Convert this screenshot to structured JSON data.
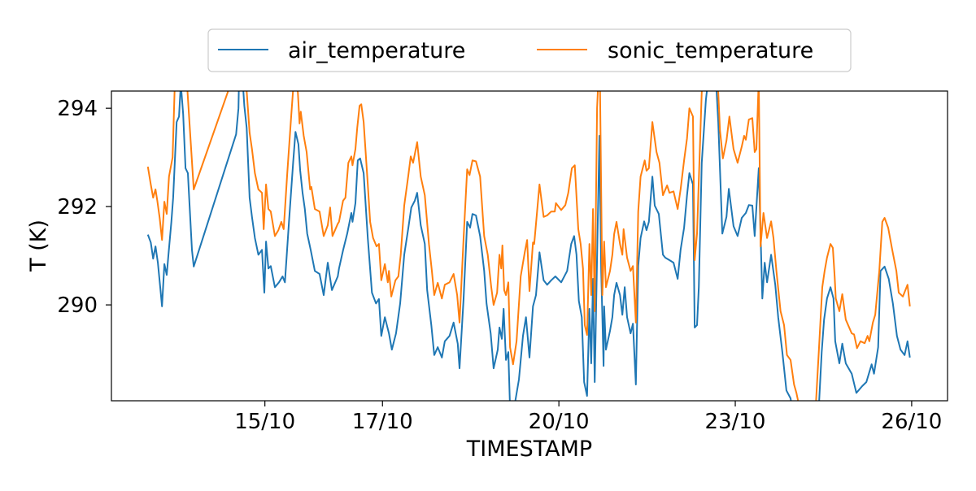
{
  "chart_data": {
    "type": "line",
    "xlabel": "TIMESTAMP",
    "ylabel": "T (K)",
    "xlim": [
      12.39,
      26.61
    ],
    "ylim": [
      288.05,
      294.35
    ],
    "x_ticks": [
      {
        "value": 15,
        "label": "15/10"
      },
      {
        "value": 17,
        "label": "17/10"
      },
      {
        "value": 20,
        "label": "20/10"
      },
      {
        "value": 23,
        "label": "23/10"
      },
      {
        "value": 26,
        "label": "26/10"
      }
    ],
    "y_ticks": [
      {
        "value": 290,
        "label": "290"
      },
      {
        "value": 292,
        "label": "292"
      },
      {
        "value": 294,
        "label": "294"
      }
    ],
    "grid": false,
    "legend_position": "top-center-outside",
    "series": [
      {
        "name": "air_temperature",
        "color": "#1f77b4",
        "x": [
          13.01,
          13.06,
          13.1,
          13.14,
          13.18,
          13.22,
          13.25,
          13.29,
          13.33,
          13.36,
          13.41,
          13.44,
          13.5,
          13.54,
          13.57,
          13.61,
          13.65,
          13.69,
          13.72,
          13.76,
          13.79,
          14.51,
          14.55,
          14.56,
          14.62,
          14.65,
          14.69,
          14.74,
          14.78,
          14.83,
          14.89,
          14.95,
          14.99,
          15.02,
          15.06,
          15.1,
          15.17,
          15.24,
          15.3,
          15.34,
          15.41,
          15.48,
          15.52,
          15.57,
          15.6,
          15.64,
          15.68,
          15.72,
          15.78,
          15.85,
          15.93,
          16.0,
          16.07,
          16.14,
          16.24,
          16.26,
          16.33,
          16.4,
          16.47,
          16.49,
          16.54,
          16.58,
          16.62,
          16.68,
          16.75,
          16.82,
          16.89,
          16.94,
          16.98,
          17.04,
          17.11,
          17.16,
          17.23,
          17.3,
          17.37,
          17.44,
          17.49,
          17.55,
          17.59,
          17.65,
          17.72,
          17.76,
          17.83,
          17.88,
          17.94,
          18.01,
          18.06,
          18.14,
          18.21,
          18.28,
          18.31,
          18.38,
          18.44,
          18.49,
          18.53,
          18.59,
          18.66,
          18.73,
          18.77,
          18.84,
          18.89,
          18.96,
          18.99,
          19.03,
          19.06,
          19.1,
          19.14,
          19.17,
          19.25,
          19.32,
          19.39,
          19.44,
          19.5,
          19.56,
          19.61,
          19.67,
          19.74,
          19.8,
          19.87,
          19.94,
          20.04,
          20.14,
          20.21,
          20.26,
          20.3,
          20.34,
          20.39,
          20.43,
          20.48,
          20.52,
          20.55,
          20.58,
          20.61,
          20.65,
          20.69,
          20.72,
          20.76,
          20.77,
          20.8,
          20.87,
          20.91,
          20.94,
          20.98,
          21.04,
          21.08,
          21.12,
          21.16,
          21.22,
          21.26,
          21.31,
          21.35,
          21.39,
          21.45,
          21.49,
          21.53,
          21.59,
          21.63,
          21.7,
          21.77,
          21.81,
          21.88,
          21.95,
          22.02,
          22.07,
          22.13,
          22.18,
          22.22,
          22.28,
          22.31,
          22.35,
          22.38,
          22.43,
          22.5,
          22.54,
          22.67,
          22.71,
          22.78,
          22.85,
          22.89,
          22.97,
          23.04,
          23.11,
          23.18,
          23.23,
          23.29,
          23.33,
          23.4,
          23.46,
          23.5,
          23.54,
          23.61,
          23.68,
          23.73,
          23.8,
          23.87,
          23.94,
          23.98,
          24.33,
          24.42,
          24.47,
          24.51,
          24.56,
          24.62,
          24.67,
          24.7,
          24.77,
          24.82,
          24.88,
          24.98,
          25.06,
          25.16,
          25.23,
          25.32,
          25.36,
          25.43,
          25.47,
          25.54,
          25.61,
          25.68,
          25.75,
          25.81,
          25.88,
          25.93,
          25.97
        ],
        "y": [
          291.43,
          291.27,
          290.94,
          291.19,
          290.86,
          290.36,
          289.97,
          290.83,
          290.61,
          291.02,
          291.69,
          292.18,
          293.72,
          293.83,
          294.5,
          293.88,
          292.78,
          292.68,
          292.02,
          291.12,
          290.78,
          293.47,
          294.0,
          294.6,
          294.6,
          294.05,
          293.6,
          292.18,
          291.79,
          291.36,
          291.02,
          291.12,
          290.25,
          291.29,
          290.74,
          290.79,
          290.36,
          290.46,
          290.58,
          290.46,
          291.69,
          292.89,
          293.52,
          293.27,
          292.73,
          292.28,
          291.95,
          291.45,
          291.11,
          290.69,
          290.63,
          290.2,
          290.86,
          290.3,
          290.58,
          290.74,
          291.11,
          291.45,
          291.87,
          291.69,
          292.07,
          292.94,
          292.98,
          292.68,
          291.36,
          290.25,
          290.03,
          290.12,
          289.37,
          289.75,
          289.42,
          289.09,
          289.42,
          290.03,
          291.02,
          291.57,
          291.98,
          292.12,
          292.28,
          291.62,
          291.24,
          290.3,
          289.59,
          288.98,
          289.14,
          288.93,
          289.26,
          289.37,
          289.64,
          289.21,
          288.71,
          290.13,
          291.69,
          291.57,
          291.85,
          291.82,
          291.4,
          290.69,
          290.03,
          289.42,
          288.71,
          289.09,
          289.54,
          289.31,
          289.92,
          288.88,
          289.04,
          287.9,
          287.98,
          288.48,
          289.37,
          289.75,
          288.93,
          289.97,
          290.2,
          291.07,
          290.5,
          290.41,
          290.5,
          290.58,
          290.46,
          290.69,
          291.24,
          291.4,
          291.02,
          290.08,
          289.75,
          288.43,
          288.15,
          289.92,
          288.81,
          290.53,
          288.43,
          290.96,
          293.44,
          290.69,
          288.76,
          289.97,
          289.09,
          289.47,
          289.75,
          290.2,
          290.45,
          290.2,
          289.8,
          290.36,
          289.75,
          289.42,
          289.62,
          288.38,
          290.79,
          291.36,
          291.7,
          291.52,
          291.69,
          292.61,
          292.02,
          291.85,
          291.02,
          290.96,
          290.91,
          290.86,
          290.53,
          291.12,
          291.57,
          292.23,
          292.68,
          292.45,
          289.54,
          289.59,
          290.36,
          292.89,
          294.17,
          294.6,
          294.6,
          293.72,
          291.45,
          291.79,
          292.36,
          291.6,
          291.4,
          291.77,
          291.87,
          292.03,
          292.02,
          291.4,
          292.78,
          290.13,
          290.86,
          290.46,
          291.02,
          290.41,
          289.75,
          289.04,
          288.26,
          288.1,
          287.8,
          287.6,
          287.9,
          289.04,
          289.7,
          290.13,
          290.36,
          290.13,
          289.26,
          288.81,
          289.21,
          288.81,
          288.6,
          288.21,
          288.35,
          288.43,
          288.79,
          288.6,
          289.14,
          290.69,
          290.78,
          290.53,
          290.03,
          289.37,
          289.09,
          288.98,
          289.26,
          288.93
        ]
      },
      {
        "name": "sonic_temperature",
        "color": "#ff7f0e",
        "x": [
          13.01,
          13.06,
          13.1,
          13.14,
          13.17,
          13.21,
          13.25,
          13.29,
          13.33,
          13.37,
          13.43,
          13.47,
          13.57,
          13.68,
          13.72,
          13.79,
          14.37,
          14.65,
          14.69,
          14.74,
          14.78,
          14.83,
          14.89,
          14.95,
          14.98,
          15.02,
          15.06,
          15.1,
          15.17,
          15.23,
          15.28,
          15.32,
          15.38,
          15.45,
          15.5,
          15.56,
          15.59,
          15.61,
          15.66,
          15.71,
          15.77,
          15.79,
          15.85,
          15.93,
          16.0,
          16.07,
          16.11,
          16.15,
          16.24,
          16.26,
          16.33,
          16.37,
          16.42,
          16.47,
          16.49,
          16.54,
          16.57,
          16.61,
          16.64,
          16.68,
          16.75,
          16.79,
          16.84,
          16.9,
          16.94,
          16.98,
          17.04,
          17.09,
          17.11,
          17.15,
          17.22,
          17.27,
          17.31,
          17.37,
          17.44,
          17.48,
          17.52,
          17.59,
          17.65,
          17.72,
          17.79,
          17.84,
          17.88,
          17.94,
          18.01,
          18.06,
          18.14,
          18.21,
          18.27,
          18.31,
          18.38,
          18.44,
          18.48,
          18.53,
          18.59,
          18.66,
          18.73,
          18.79,
          18.85,
          18.89,
          18.95,
          18.99,
          19.02,
          19.04,
          19.07,
          19.1,
          19.14,
          19.17,
          19.22,
          19.28,
          19.35,
          19.42,
          19.46,
          19.5,
          19.56,
          19.58,
          19.67,
          19.74,
          19.8,
          19.87,
          19.93,
          19.95,
          20.04,
          20.11,
          20.16,
          20.22,
          20.27,
          20.33,
          20.37,
          20.41,
          20.44,
          20.48,
          20.52,
          20.55,
          20.58,
          20.61,
          20.65,
          20.68,
          20.7,
          20.74,
          20.77,
          20.8,
          20.87,
          20.91,
          20.94,
          20.98,
          21.04,
          21.08,
          21.1,
          21.16,
          21.22,
          21.26,
          21.31,
          21.35,
          21.39,
          21.46,
          21.49,
          21.53,
          21.59,
          21.66,
          21.71,
          21.77,
          21.84,
          21.88,
          21.95,
          22.02,
          22.07,
          22.13,
          22.18,
          22.22,
          22.28,
          22.31,
          22.35,
          22.39,
          22.43,
          22.49,
          22.63,
          22.71,
          22.74,
          22.79,
          22.85,
          22.9,
          22.97,
          23.04,
          23.11,
          23.15,
          23.18,
          23.23,
          23.29,
          23.33,
          23.36,
          23.4,
          23.43,
          23.48,
          23.54,
          23.61,
          23.65,
          23.7,
          23.77,
          23.83,
          23.88,
          23.94,
          24.0,
          24.04,
          24.08,
          24.22,
          24.37,
          24.42,
          24.48,
          24.52,
          24.56,
          24.62,
          24.66,
          24.69,
          24.71,
          24.77,
          24.82,
          24.88,
          24.98,
          25.02,
          25.07,
          25.13,
          25.2,
          25.25,
          25.28,
          25.34,
          25.38,
          25.45,
          25.5,
          25.54,
          25.6,
          25.67,
          25.74,
          25.78,
          25.85,
          25.93,
          25.97
        ],
        "y": [
          292.81,
          292.45,
          292.18,
          292.35,
          292.12,
          291.77,
          291.32,
          292.1,
          291.85,
          292.61,
          293.0,
          294.6,
          295.2,
          294.4,
          293.67,
          292.35,
          294.33,
          295.2,
          294.35,
          293.5,
          293.17,
          292.68,
          292.35,
          292.28,
          291.54,
          292.45,
          291.95,
          291.9,
          291.4,
          291.52,
          291.69,
          291.54,
          292.68,
          293.88,
          294.7,
          294.33,
          293.69,
          293.93,
          293.44,
          293.11,
          292.35,
          292.4,
          291.95,
          291.9,
          291.4,
          291.62,
          291.98,
          291.4,
          291.65,
          291.69,
          292.12,
          292.18,
          292.89,
          293.02,
          292.84,
          293.17,
          293.6,
          294.05,
          294.08,
          293.72,
          292.45,
          291.69,
          291.36,
          291.19,
          291.24,
          290.5,
          290.83,
          290.46,
          290.69,
          290.17,
          290.5,
          290.58,
          291.02,
          292.02,
          292.64,
          293.02,
          292.89,
          293.31,
          292.61,
          292.23,
          291.24,
          290.69,
          290.2,
          290.45,
          290.13,
          290.41,
          290.46,
          290.63,
          290.2,
          289.64,
          291.36,
          292.76,
          292.64,
          292.94,
          292.92,
          292.61,
          291.4,
          291.02,
          290.36,
          290.0,
          290.25,
          291.02,
          290.74,
          291.21,
          290.3,
          290.2,
          290.46,
          289.14,
          288.79,
          289.26,
          290.58,
          291.07,
          291.32,
          290.28,
          291.27,
          291.24,
          292.45,
          291.79,
          291.82,
          291.9,
          291.9,
          292.07,
          291.93,
          292.03,
          292.28,
          292.78,
          292.84,
          291.54,
          291.24,
          290.74,
          289.59,
          289.39,
          291.24,
          290.2,
          291.95,
          289.87,
          294.0,
          294.8,
          294.33,
          290.2,
          291.29,
          290.36,
          290.69,
          291.02,
          291.44,
          291.69,
          291.24,
          291.02,
          291.54,
          290.96,
          290.69,
          290.79,
          289.64,
          291.9,
          292.61,
          292.94,
          292.73,
          292.78,
          293.72,
          293.11,
          292.89,
          292.23,
          292.43,
          292.28,
          292.31,
          291.95,
          292.35,
          292.94,
          293.39,
          294.0,
          293.83,
          290.91,
          291.45,
          292.89,
          294.33,
          294.8,
          294.9,
          294.33,
          293.55,
          292.98,
          293.34,
          293.83,
          293.17,
          292.89,
          293.22,
          293.44,
          293.36,
          293.77,
          293.8,
          293.11,
          293.17,
          294.6,
          291.19,
          291.87,
          291.36,
          291.7,
          291.36,
          290.69,
          289.87,
          289.59,
          288.98,
          288.88,
          288.38,
          288.21,
          287.98,
          287.6,
          287.98,
          289.04,
          290.36,
          290.69,
          290.96,
          291.24,
          291.16,
          290.58,
          290.13,
          289.87,
          290.22,
          289.7,
          289.42,
          289.4,
          289.12,
          289.26,
          289.22,
          289.37,
          289.26,
          289.64,
          289.8,
          290.69,
          291.69,
          291.77,
          291.57,
          291.12,
          290.69,
          290.25,
          290.17,
          290.41,
          289.97
        ]
      }
    ]
  }
}
